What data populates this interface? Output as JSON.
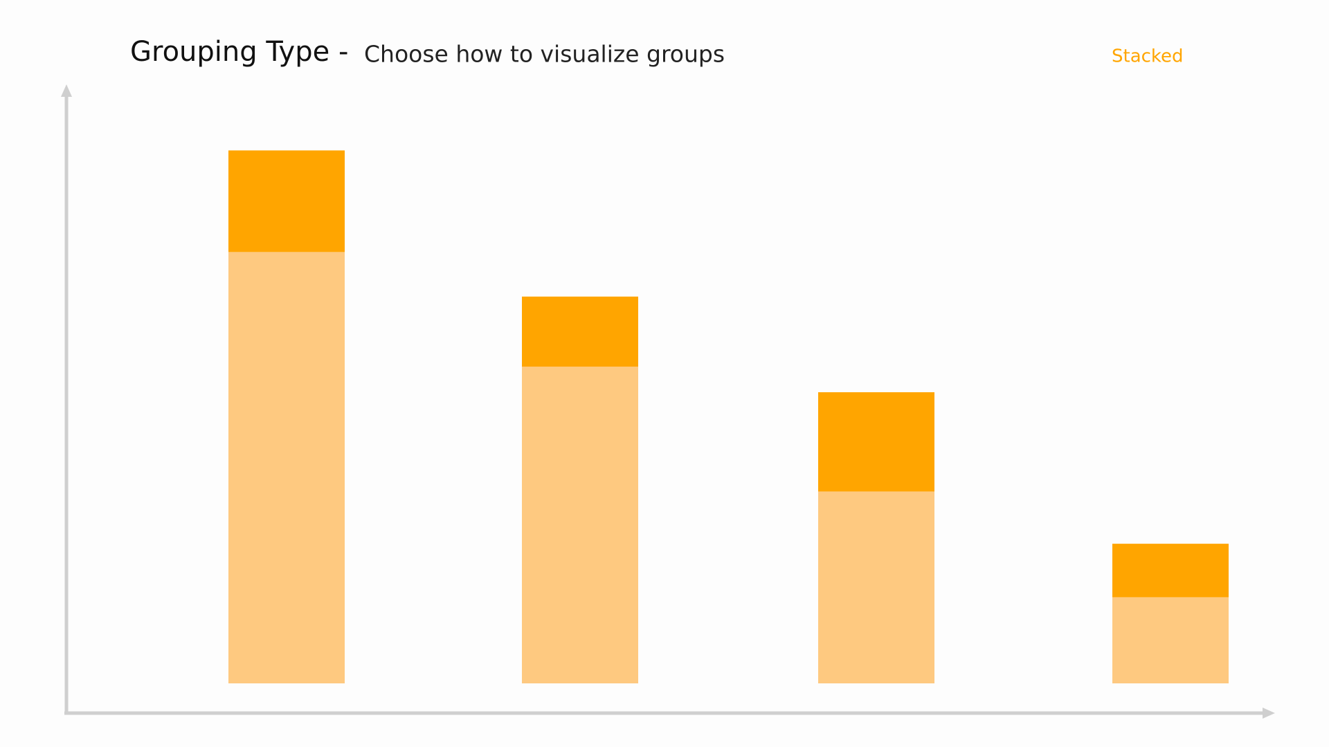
{
  "chart_data": {
    "type": "stacked_bar",
    "title": "Grouping Type -",
    "subtitle": "Choose how to visualize groups",
    "mode_label": "Stacked",
    "categories": [
      null,
      null,
      null,
      null
    ],
    "series": [
      {
        "color": "#fec980",
        "values": [
          72.6,
          53.3,
          32.3,
          14.5
        ]
      },
      {
        "color": "#ffa500",
        "values": [
          17.1,
          11.8,
          16.7,
          9.0
        ]
      }
    ],
    "ylim": [
      0,
      100
    ]
  }
}
